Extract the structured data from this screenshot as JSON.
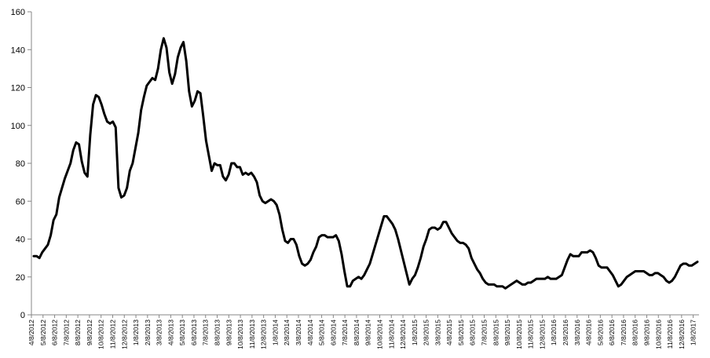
{
  "chart_data": {
    "type": "line",
    "title": "",
    "xlabel": "",
    "ylabel": "",
    "ylim": [
      0,
      160
    ],
    "yticks": [
      0,
      20,
      40,
      60,
      80,
      100,
      120,
      140,
      160
    ],
    "grid": false,
    "legend": "none",
    "line_color": "#000000",
    "x_tick_labels": [
      "4/8/2012",
      "5/8/2012",
      "6/8/2012",
      "7/8/2012",
      "8/8/2012",
      "9/8/2012",
      "10/8/2012",
      "11/8/2012",
      "12/8/2012",
      "1/8/2013",
      "2/8/2013",
      "3/8/2013",
      "4/8/2013",
      "5/8/2013",
      "6/8/2013",
      "7/8/2013",
      "8/8/2013",
      "9/8/2013",
      "10/8/2013",
      "11/8/2013",
      "12/8/2013",
      "1/8/2014",
      "2/8/2014",
      "3/8/2014",
      "4/8/2014",
      "5/8/2014",
      "6/8/2014",
      "7/8/2014",
      "8/8/2014",
      "9/8/2014",
      "10/8/2014",
      "11/8/2014",
      "12/8/2014",
      "1/8/2015",
      "2/8/2015",
      "3/8/2015",
      "4/8/2015",
      "5/8/2015",
      "6/8/2015",
      "7/8/2015",
      "8/8/2015",
      "9/8/2015",
      "10/8/2015",
      "11/8/2015",
      "12/8/2015",
      "1/8/2016",
      "2/8/2016",
      "3/8/2016",
      "4/8/2016",
      "5/8/2016",
      "6/8/2016",
      "7/8/2016",
      "8/8/2016",
      "9/8/2016",
      "10/8/2016",
      "11/8/2016",
      "12/8/2016",
      "1/8/2017"
    ],
    "series": [
      {
        "values": [
          31,
          31,
          30,
          33,
          35,
          37,
          42,
          50,
          53,
          62,
          67,
          72,
          76,
          80,
          87,
          91,
          90,
          81,
          75,
          73,
          95,
          111,
          116,
          115,
          111,
          106,
          102,
          101,
          102,
          99,
          67,
          62,
          63,
          67,
          76,
          80,
          88,
          96,
          108,
          115,
          121,
          123,
          125,
          124,
          130,
          140,
          146,
          141,
          128,
          122,
          127,
          136,
          141,
          144,
          134,
          118,
          110,
          113,
          118,
          117,
          105,
          92,
          84,
          76,
          80,
          79,
          79,
          73,
          71,
          74,
          80,
          80,
          78,
          78,
          74,
          75,
          74,
          75,
          73,
          70,
          63,
          60,
          59,
          60,
          61,
          60,
          58,
          53,
          45,
          39,
          38,
          40,
          40,
          37,
          31,
          27,
          26,
          27,
          29,
          33,
          36,
          41,
          42,
          42,
          41,
          41,
          41,
          42,
          39,
          32,
          23,
          15,
          15,
          18,
          19,
          20,
          19,
          21,
          24,
          27,
          32,
          37,
          42,
          47,
          52,
          52,
          50,
          48,
          45,
          40,
          34,
          28,
          22,
          16,
          19,
          21,
          25,
          30,
          36,
          40,
          45,
          46,
          46,
          45,
          46,
          49,
          49,
          46,
          43,
          41,
          39,
          38,
          38,
          37,
          35,
          30,
          27,
          24,
          22,
          19,
          17,
          16,
          16,
          16,
          15,
          15,
          15,
          14,
          15,
          16,
          17,
          18,
          17,
          16,
          16,
          17,
          17,
          18,
          19,
          19,
          19,
          19,
          20,
          19,
          19,
          19,
          20,
          21,
          25,
          29,
          32,
          31,
          31,
          31,
          33,
          33,
          33,
          34,
          33,
          30,
          26,
          25,
          25,
          25,
          23,
          21,
          18,
          15,
          16,
          18,
          20,
          21,
          22,
          23,
          23,
          23,
          23,
          22,
          21,
          21,
          22,
          22,
          21,
          20,
          18,
          17,
          18,
          20,
          23,
          26,
          27,
          27,
          26,
          26,
          27,
          28
        ]
      }
    ]
  }
}
